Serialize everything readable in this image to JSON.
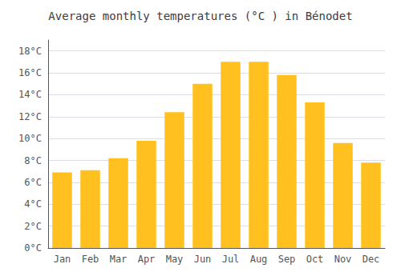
{
  "chart_data": {
    "type": "bar",
    "title": "Average monthly temperatures (°C ) in Bénodet",
    "categories": [
      "Jan",
      "Feb",
      "Mar",
      "Apr",
      "May",
      "Jun",
      "Jul",
      "Aug",
      "Sep",
      "Oct",
      "Nov",
      "Dec"
    ],
    "values": [
      6.9,
      7.1,
      8.2,
      9.8,
      12.4,
      15.0,
      17.0,
      17.0,
      15.8,
      13.3,
      9.6,
      7.8
    ],
    "color": "#FFC020",
    "ylim": [
      0,
      19
    ],
    "yticks": [
      {
        "value": 0,
        "label": "0°C"
      },
      {
        "value": 2,
        "label": "2°C"
      },
      {
        "value": 4,
        "label": "4°C"
      },
      {
        "value": 6,
        "label": "6°C"
      },
      {
        "value": 8,
        "label": "8°C"
      },
      {
        "value": 10,
        "label": "10°C"
      },
      {
        "value": 12,
        "label": "12°C"
      },
      {
        "value": 14,
        "label": "14°C"
      },
      {
        "value": 16,
        "label": "16°C"
      },
      {
        "value": 18,
        "label": "18°C"
      }
    ],
    "grid": true
  }
}
